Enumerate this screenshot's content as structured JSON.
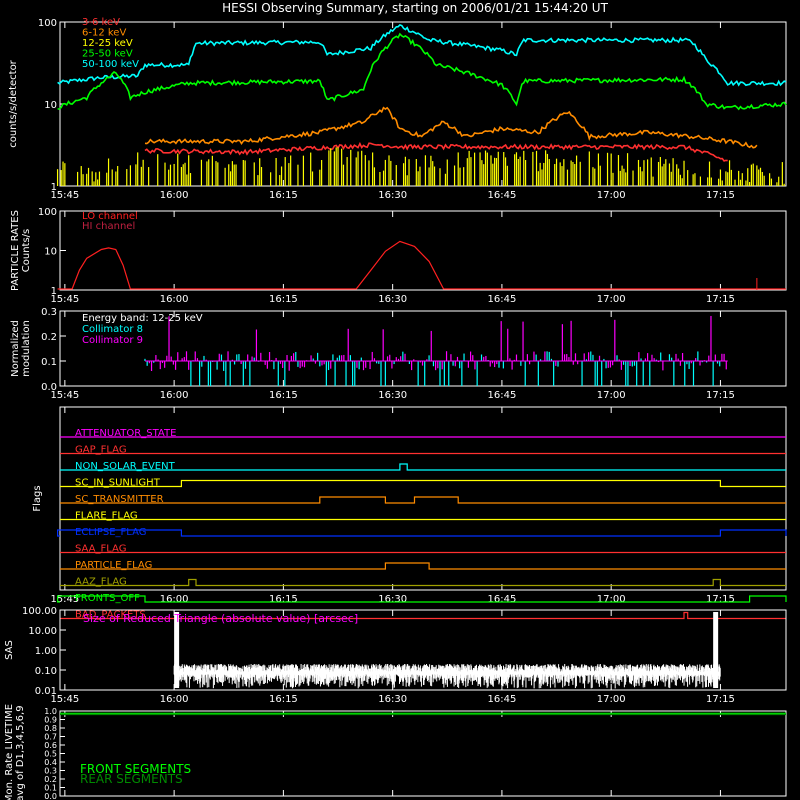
{
  "title": "HESSI Observing Summary, starting on 2006/01/21 15:44:20 UT",
  "time_labels": [
    "15:45",
    "16:00",
    "16:15",
    "16:30",
    "16:45",
    "17:00",
    "17:15"
  ],
  "colors": {
    "3-6": "#ff3030",
    "6-12": "#ff8c00",
    "12-25": "#ffff00",
    "25-50": "#00ff00",
    "50-100": "#00ffff",
    "lo": "#ff2020",
    "hi": "#c02040",
    "coll8": "#00ffff",
    "coll9": "#ff00ff",
    "white": "#ffffff",
    "front": "#00ff00",
    "rear": "#008a00"
  },
  "chart_data": [
    {
      "type": "line",
      "panel": "counts",
      "ylabel": "counts/s/detector",
      "yscale": "log",
      "ylim": [
        1,
        100
      ],
      "y_ticks": [
        "1",
        "10",
        "100"
      ],
      "xlim": [
        "15:44:20",
        "17:24:00"
      ],
      "legend": [
        "3-6 keV",
        "6-12 keV",
        "12-25 keV",
        "25-50 keV",
        "50-100 keV"
      ],
      "series": [
        {
          "name": "50-100 keV",
          "color_key": "50-100",
          "points": [
            [
              "15:44",
              18
            ],
            [
              "15:50",
              21
            ],
            [
              "15:55",
              22
            ],
            [
              "15:56",
              30
            ],
            [
              "16:02",
              30
            ],
            [
              "16:03",
              55
            ],
            [
              "16:20",
              57
            ],
            [
              "16:21",
              40
            ],
            [
              "16:27",
              48
            ],
            [
              "16:31",
              90
            ],
            [
              "16:35",
              60
            ],
            [
              "16:45",
              45
            ],
            [
              "16:47",
              40
            ],
            [
              "16:48",
              60
            ],
            [
              "17:10",
              60
            ],
            [
              "17:11",
              58
            ],
            [
              "17:13",
              35
            ],
            [
              "17:16",
              18
            ],
            [
              "17:24",
              18
            ]
          ]
        },
        {
          "name": "25-50 keV",
          "color_key": "25-50",
          "points": [
            [
              "15:44",
              9
            ],
            [
              "15:48",
              12
            ],
            [
              "15:52",
              24
            ],
            [
              "15:54",
              12
            ],
            [
              "15:56",
              14
            ],
            [
              "16:02",
              18
            ],
            [
              "16:20",
              19
            ],
            [
              "16:21",
              11
            ],
            [
              "16:26",
              15
            ],
            [
              "16:31",
              70
            ],
            [
              "16:36",
              30
            ],
            [
              "16:45",
              17
            ],
            [
              "16:47",
              10
            ],
            [
              "16:48",
              19
            ],
            [
              "17:10",
              20
            ],
            [
              "17:11",
              17
            ],
            [
              "17:13",
              10
            ],
            [
              "17:16",
              9
            ],
            [
              "17:24",
              10
            ]
          ]
        },
        {
          "name": "6-12 keV",
          "color_key": "6-12",
          "points": [
            [
              "15:56",
              3.5
            ],
            [
              "16:10",
              3.5
            ],
            [
              "16:20",
              4.5
            ],
            [
              "16:26",
              6
            ],
            [
              "16:29",
              9
            ],
            [
              "16:31",
              5
            ],
            [
              "16:34",
              4
            ],
            [
              "16:37",
              6
            ],
            [
              "16:40",
              4
            ],
            [
              "16:45",
              5
            ],
            [
              "16:50",
              4.5
            ],
            [
              "16:54",
              8
            ],
            [
              "16:57",
              4
            ],
            [
              "17:05",
              4.5
            ],
            [
              "17:11",
              4
            ],
            [
              "17:16",
              3.5
            ],
            [
              "17:20",
              3
            ]
          ]
        },
        {
          "name": "3-6 keV",
          "color_key": "3-6",
          "points": [
            [
              "15:56",
              2.7
            ],
            [
              "16:10",
              2.6
            ],
            [
              "16:22",
              3
            ],
            [
              "16:28",
              3.2
            ],
            [
              "16:31",
              3
            ],
            [
              "16:45",
              3
            ],
            [
              "17:10",
              3
            ],
            [
              "17:16",
              2
            ]
          ]
        },
        {
          "name": "12-25 keV",
          "color_key": "12-25",
          "style": "bars",
          "points": [
            [
              "15:44",
              1.7
            ],
            [
              "15:50",
              1.6
            ],
            [
              "15:56",
              2.2
            ],
            [
              "16:10",
              1.6
            ],
            [
              "16:25",
              2.5
            ],
            [
              "16:30",
              1.8
            ],
            [
              "16:45",
              2.2
            ],
            [
              "17:00",
              2
            ],
            [
              "17:16",
              1.6
            ],
            [
              "17:24",
              1.5
            ]
          ]
        }
      ]
    },
    {
      "type": "line",
      "panel": "particle",
      "ylabel": "PARTICLE RATES",
      "ylabel2": "Counts/s",
      "yscale": "log",
      "ylim": [
        1,
        100
      ],
      "y_ticks": [
        "1",
        "10",
        "100"
      ],
      "legend": [
        "LO channel",
        "HI channel"
      ],
      "series": [
        {
          "name": "LO channel",
          "color_key": "lo",
          "points": [
            [
              "15:44",
              1
            ],
            [
              "15:46",
              1
            ],
            [
              "15:47",
              3
            ],
            [
              "15:48",
              6
            ],
            [
              "15:50",
              10
            ],
            [
              "15:51",
              11
            ],
            [
              "15:52",
              10
            ],
            [
              "15:53",
              4
            ],
            [
              "15:54",
              1
            ],
            [
              "16:25",
              1
            ],
            [
              "16:27",
              3
            ],
            [
              "16:29",
              9
            ],
            [
              "16:31",
              16
            ],
            [
              "16:33",
              12
            ],
            [
              "16:35",
              5
            ],
            [
              "16:37",
              1
            ],
            [
              "17:24",
              1
            ]
          ]
        }
      ]
    },
    {
      "type": "line",
      "panel": "modulation",
      "ylabel": "Normalized",
      "ylabel2": "modulation",
      "ylim": [
        0,
        0.3
      ],
      "y_ticks": [
        "0.0",
        "0.1",
        "0.2",
        "0.3"
      ],
      "annotation": "Energy band: 12-25 keV",
      "legend": [
        "Collimator 8",
        "Collimator 9"
      ],
      "series": [
        {
          "name": "Collimator 8",
          "color_key": "coll8",
          "baseline": 0.1,
          "range": [
            "15:56",
            "17:16"
          ]
        },
        {
          "name": "Collimator 9",
          "color_key": "coll9",
          "baseline": 0.1,
          "range": [
            "15:56",
            "17:16"
          ]
        }
      ]
    },
    {
      "type": "line",
      "panel": "flags",
      "ylabel": "Flags",
      "flags": [
        {
          "name": "ATTENUATOR_STATE",
          "color": "#ff00ff",
          "high": []
        },
        {
          "name": "GAP_FLAG",
          "color": "#ff3030",
          "high": []
        },
        {
          "name": "NON_SOLAR_EVENT",
          "color": "#00ffff",
          "high": [
            [
              "16:31",
              "16:32"
            ]
          ]
        },
        {
          "name": "SC_IN_SUNLIGHT",
          "color": "#ffff00",
          "high": [
            [
              "16:01",
              "17:15"
            ]
          ]
        },
        {
          "name": "SC_TRANSMITTER",
          "color": "#ff8c00",
          "high": [
            [
              "16:20",
              "16:29"
            ],
            [
              "16:33",
              "16:39"
            ]
          ]
        },
        {
          "name": "FLARE_FLAG",
          "color": "#ffff00",
          "high": []
        },
        {
          "name": "ECLIPSE_FLAG",
          "color": "#0030ff",
          "high": [
            [
              "15:44",
              "16:01"
            ],
            [
              "17:15",
              "17:24"
            ]
          ]
        },
        {
          "name": "SAA_FLAG",
          "color": "#ff3030",
          "high": []
        },
        {
          "name": "PARTICLE_FLAG",
          "color": "#ff8c00",
          "high": [
            [
              "16:29",
              "16:35"
            ]
          ]
        },
        {
          "name": "AAZ_FLAG",
          "color": "#a0a000",
          "high": [
            [
              "16:02",
              "16:03"
            ],
            [
              "17:14",
              "17:15"
            ]
          ]
        },
        {
          "name": "FRONTS_OFF",
          "color": "#00ff00",
          "high": [
            [
              "15:44",
              "15:56"
            ],
            [
              "17:19",
              "17:24"
            ]
          ]
        },
        {
          "name": "BAD_PACKETS",
          "color": "#ff3030",
          "high": [
            [
              "17:10",
              "17:10.5"
            ]
          ]
        }
      ]
    },
    {
      "type": "line",
      "panel": "sas",
      "ylabel": "SAS",
      "yscale": "log",
      "ylim": [
        0.01,
        100
      ],
      "y_ticks": [
        "0.01",
        "0.10",
        "1.00",
        "10.00",
        "100.00"
      ],
      "annotation": "Size of Reduced Triangle (absolute value) [arcsec]",
      "series": [
        {
          "name": "Size of Reduced Triangle",
          "color_key": "white",
          "range": [
            "16:00",
            "17:15"
          ],
          "baseline": 0.12
        }
      ]
    },
    {
      "type": "line",
      "panel": "livetime",
      "ylabel": "Mon. Rate LIVETIME",
      "ylabel2": "avg of D1,3,4,5,6,9",
      "ylim": [
        0,
        1
      ],
      "y_ticks": [
        "0.0",
        "0.1",
        "0.2",
        "0.3",
        "0.4",
        "0.5",
        "0.6",
        "0.7",
        "0.8",
        "0.9",
        "1.0"
      ],
      "legend": [
        "FRONT SEGMENTS",
        "REAR SEGMENTS"
      ],
      "series": [
        {
          "name": "FRONT SEGMENTS",
          "color_key": "front",
          "value": 0.97
        },
        {
          "name": "REAR SEGMENTS",
          "color_key": "rear",
          "value": 0.96
        }
      ]
    }
  ]
}
